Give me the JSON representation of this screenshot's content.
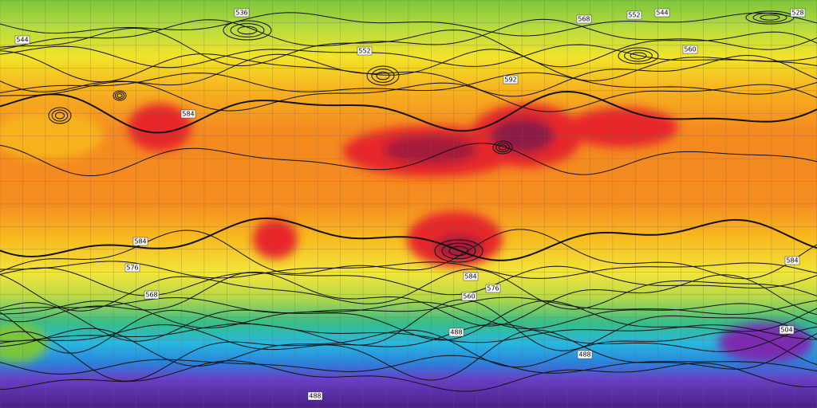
{
  "map": {
    "contour_labels": [
      "536",
      "528",
      "544",
      "552",
      "568",
      "552",
      "560",
      "584",
      "584",
      "576",
      "568",
      "584",
      "504",
      "488",
      "488",
      "488",
      "560",
      "576",
      "584",
      "544",
      "592"
    ]
  }
}
